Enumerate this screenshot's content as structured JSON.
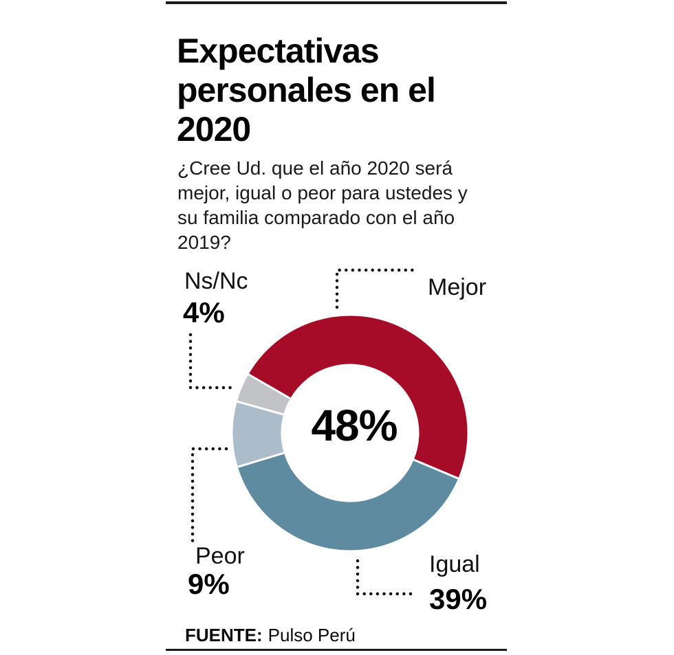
{
  "infographic": {
    "title": "Expectativas\npersonales en el\n2020",
    "question": "¿Cree Ud. que el año 2020 será\nmejor, igual o peor para ustedes y\nsu familia comparado con el año\n2019?",
    "center_value": "48%",
    "source_label": "FUENTE:",
    "source_value": "Pulso Perú"
  },
  "callouts": {
    "nsnc": {
      "label": "Ns/Nc",
      "value": "4%"
    },
    "mejor": {
      "label": "Mejor"
    },
    "peor": {
      "label": "Peor",
      "value": "9%"
    },
    "igual": {
      "label": "Igual",
      "value": "39%"
    }
  },
  "chart_data": {
    "type": "pie",
    "variant": "donut",
    "title": "Expectativas personales en el 2020",
    "question": "¿Cree Ud. que el año 2020 será mejor, igual o peor para ustedes y su familia comparado con el año 2019?",
    "unit": "%",
    "direction": "clockwise",
    "start_angle_cw_from_top_deg": -60,
    "center_label": "48%",
    "slices": [
      {
        "label": "Mejor",
        "value": 48,
        "color": "#A60B27"
      },
      {
        "label": "Igual",
        "value": 39,
        "color": "#5F8BA1"
      },
      {
        "label": "Peor",
        "value": 9,
        "color": "#ABBCCA"
      },
      {
        "label": "Ns/Nc",
        "value": 4,
        "color": "#C1C3C6"
      }
    ],
    "slice_gap_color": "#FFFFFF",
    "legend_position": "callouts-with-dotted-leaders",
    "source": "FUENTE: Pulso Perú"
  }
}
